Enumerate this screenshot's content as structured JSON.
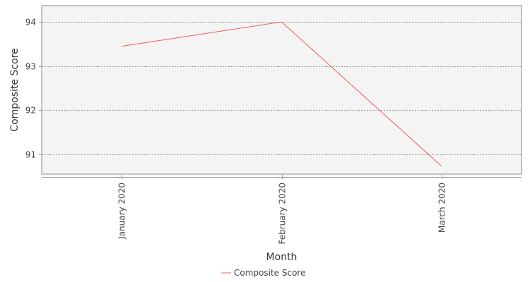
{
  "chart_data": {
    "type": "line",
    "title": "",
    "xlabel": "Month",
    "ylabel": "Composite Score",
    "categories": [
      "January 2020",
      "February 2020",
      "March 2020"
    ],
    "series": [
      {
        "name": "Composite Score",
        "values": [
          93.45,
          94.0,
          90.73
        ],
        "color": "#f05a5a"
      }
    ],
    "ylim": [
      90.55,
      94.37
    ],
    "yticks": [
      91,
      92,
      93,
      94
    ],
    "grid": true,
    "legend_position": "bottom-center",
    "colors": {
      "plot_background": "#f4f4f4",
      "gridline": "#777777",
      "axis": "#999999"
    }
  }
}
